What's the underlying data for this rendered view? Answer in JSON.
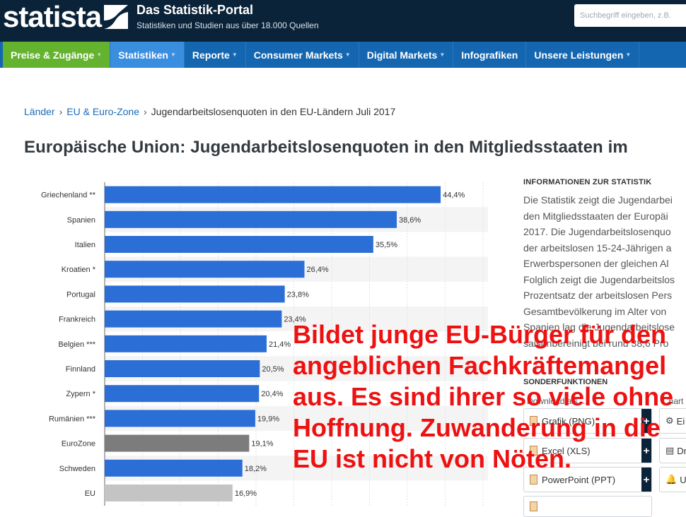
{
  "header": {
    "logo_text": "statista",
    "portal_title": "Das Statistik-Portal",
    "portal_subtitle": "Statistiken und Studien aus über 18.000 Quellen",
    "search_placeholder": "Suchbegriff eingeben, z.B."
  },
  "nav": {
    "items": [
      {
        "label": "Preise & Zugänge",
        "caret": true
      },
      {
        "label": "Statistiken",
        "caret": true
      },
      {
        "label": "Reporte",
        "caret": true
      },
      {
        "label": "Consumer Markets",
        "caret": true
      },
      {
        "label": "Digital Markets",
        "caret": true
      },
      {
        "label": "Infografiken",
        "caret": false
      },
      {
        "label": "Unsere Leistungen",
        "caret": true
      }
    ]
  },
  "breadcrumb": {
    "items": [
      "Länder",
      "EU & Euro-Zone"
    ],
    "current": "Jugendarbeitslosenquoten in den EU-Ländern Juli 2017",
    "separator": "›"
  },
  "page_title": "Europäische Union: Jugendarbeitslosenquoten in den Mitgliedsstaaten im",
  "chart_data": {
    "type": "bar",
    "orientation": "horizontal",
    "categories": [
      "Griechenland **",
      "Spanien",
      "Italien",
      "Kroatien *",
      "Portugal",
      "Frankreich",
      "Belgien ***",
      "Finnland",
      "Zypern *",
      "Rumänien ***",
      "EuroZone",
      "Schweden",
      "EU"
    ],
    "values": [
      44.4,
      38.6,
      35.5,
      26.4,
      23.8,
      23.4,
      21.4,
      20.5,
      20.4,
      19.9,
      19.1,
      18.2,
      16.9
    ],
    "value_labels": [
      "44,4%",
      "38,6%",
      "35,5%",
      "26,4%",
      "23,8%",
      "23,4%",
      "21,4%",
      "20,5%",
      "20,4%",
      "19,9%",
      "19,1%",
      "18,2%",
      "16,9%"
    ],
    "bar_colors": [
      "#2b6fd6",
      "#2b6fd6",
      "#2b6fd6",
      "#2b6fd6",
      "#2b6fd6",
      "#2b6fd6",
      "#2b6fd6",
      "#2b6fd6",
      "#2b6fd6",
      "#2b6fd6",
      "#7c7c7c",
      "#2b6fd6",
      "#c4c4c4"
    ],
    "xlim": [
      0,
      50
    ],
    "grid": true,
    "title": "",
    "xlabel": "",
    "ylabel": ""
  },
  "info": {
    "heading": "INFORMATIONEN ZUR STATISTIK",
    "lines": [
      "Die Statistik zeigt die Jugendarbei",
      "den Mitgliedsstaaten der Europäi",
      "2017. Die Jugendarbeitslosenquo",
      "der arbeitslosen 15-24-Jährigen a",
      "Erwerbspersonen der gleichen Al",
      "Folglich zeigt die Jugendarbeitslos",
      "Prozentsatz der arbeitslosen Pers",
      "Gesamtbevölkerung im Alter von",
      "Spanien lag die Jugendarbeitslose",
      "saisonbereinigt bei rund 38,6 Pro"
    ]
  },
  "sonder": {
    "heading": "SONDERFUNKTIONEN",
    "download_label": "Download als ...",
    "chart_label": "Chart",
    "buttons": [
      "Grafik (PNG)",
      "Excel (XLS)",
      "PowerPoint (PPT)"
    ],
    "side_buttons": [
      "Ei",
      "Dr",
      "Up"
    ]
  },
  "overlay": {
    "color": "#ee1111",
    "lines": [
      "Bildet junge EU-Bürger für den",
      "angeblichen Fachkräftemangel",
      "aus. Es sind ihrer so viele ohne",
      "Hoffnung. Zuwanderung in die",
      "EU ist nicht von Nöten."
    ]
  }
}
